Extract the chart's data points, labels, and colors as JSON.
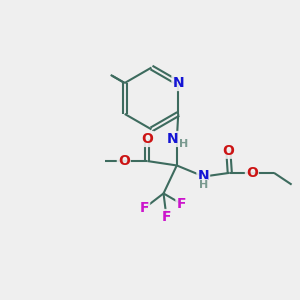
{
  "bg_color": "#efefef",
  "bond_color": "#3d6b5e",
  "bond_width": 1.5,
  "atom_colors": {
    "N": "#1414d4",
    "O": "#cc1414",
    "F": "#cc14cc",
    "C": "#3d6b5e",
    "H": "#7a9a90"
  },
  "figsize": [
    3.0,
    3.0
  ],
  "dpi": 100
}
